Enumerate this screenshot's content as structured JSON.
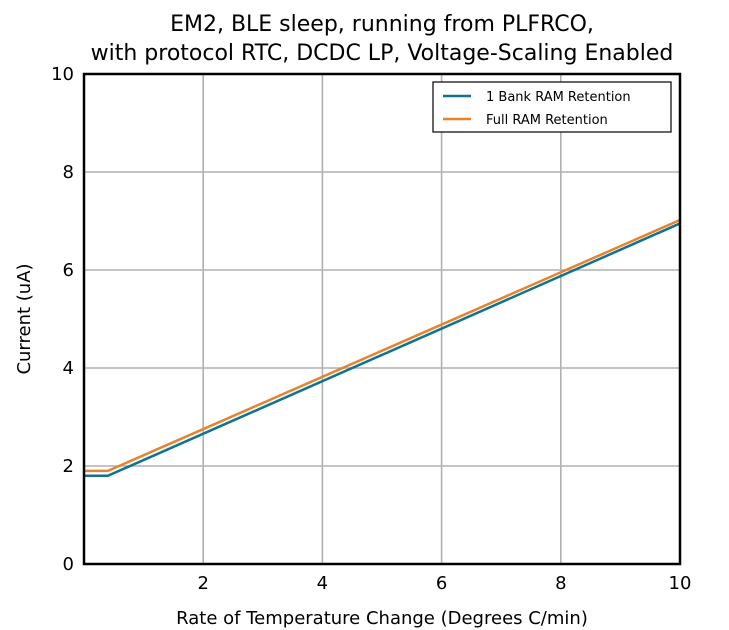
{
  "chart_data": {
    "type": "line",
    "title_lines": [
      "EM2, BLE sleep, running from PLFRCO,",
      "with protocol RTC, DCDC LP, Voltage-Scaling Enabled"
    ],
    "xlabel": "Rate of Temperature Change (Degrees C/min)",
    "ylabel": "Current (uA)",
    "xlim": [
      0,
      10
    ],
    "ylim": [
      0,
      10
    ],
    "xticks": [
      2,
      4,
      6,
      8,
      10
    ],
    "yticks": [
      0,
      2,
      4,
      6,
      8,
      10
    ],
    "grid": true,
    "legend_position": "top-right",
    "series": [
      {
        "name": "1 Bank RAM Retention",
        "color": "#0e7290",
        "x": [
          0,
          0.4,
          10
        ],
        "y": [
          1.8,
          1.8,
          6.95
        ]
      },
      {
        "name": "Full RAM Retention",
        "color": "#e8822c",
        "x": [
          0,
          0.4,
          10
        ],
        "y": [
          1.9,
          1.9,
          7.02
        ]
      }
    ]
  }
}
